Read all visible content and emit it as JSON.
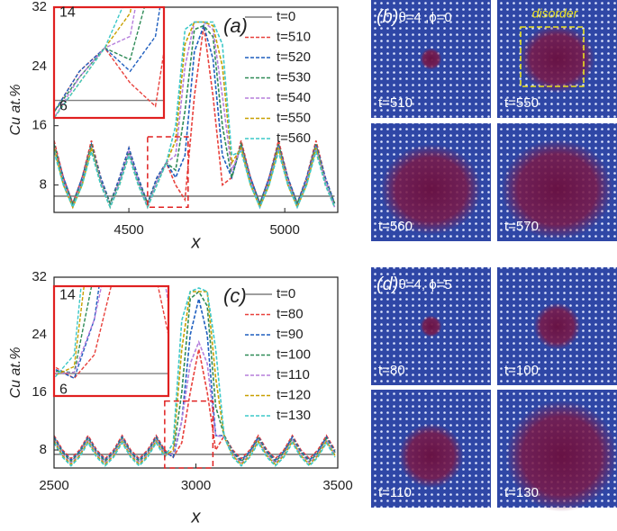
{
  "chart_data": [
    {
      "type": "line",
      "title": "(a)",
      "xlabel": "x",
      "ylabel": "Cu at.%",
      "xlim": [
        4260,
        5170
      ],
      "ylim": [
        4.3,
        32
      ],
      "xticks": [
        4500,
        5000
      ],
      "yticks": [
        8,
        16,
        24,
        32
      ],
      "legend": "upper right",
      "x": [
        4260,
        4290,
        4320,
        4350,
        4380,
        4410,
        4440,
        4470,
        4500,
        4530,
        4560,
        4590,
        4620,
        4650,
        4680,
        4710,
        4740,
        4770,
        4800,
        4830,
        4860,
        4890,
        4920,
        4950,
        4980,
        5010,
        5040,
        5070,
        5100,
        5130,
        5160
      ],
      "series": [
        {
          "name": "t=0",
          "color": "#7f7f7f",
          "values": [
            6.5,
            6.5,
            6.5,
            6.5,
            6.5,
            6.5,
            6.5,
            6.5,
            6.5,
            6.5,
            6.5,
            6.5,
            6.5,
            6.5,
            6.5,
            6.5,
            6.5,
            6.5,
            6.5,
            6.5,
            6.5,
            6.5,
            6.5,
            6.5,
            6.5,
            6.5,
            6.5,
            6.5,
            6.5,
            6.5,
            6.5
          ]
        },
        {
          "name": "t=510",
          "color": "#e8413c",
          "values": [
            14,
            9,
            5.5,
            9,
            14,
            9,
            5.5,
            9,
            13,
            9,
            5.5,
            9,
            11,
            8,
            6,
            20,
            29.5,
            20,
            8,
            9,
            14,
            9,
            5.5,
            9,
            14,
            9,
            5.5,
            9,
            14,
            9,
            5.5
          ]
        },
        {
          "name": "t=520",
          "color": "#1f5fbf",
          "values": [
            13.5,
            9,
            5.5,
            9,
            13.5,
            9,
            5.5,
            9,
            13,
            9,
            5.5,
            9,
            11,
            9,
            12,
            26,
            29.5,
            25,
            12,
            9,
            13.5,
            9,
            5.5,
            9,
            13.5,
            9,
            5.5,
            9,
            13.5,
            9,
            5.5
          ]
        },
        {
          "name": "t=530",
          "color": "#2e8b57",
          "values": [
            13.5,
            8.5,
            5.5,
            8.5,
            13.5,
            8.5,
            5.5,
            8.5,
            12.5,
            8.5,
            5.5,
            8.5,
            11,
            10,
            18,
            29,
            29.5,
            28,
            16,
            9,
            13.5,
            8.5,
            5.5,
            8.5,
            13.5,
            8.5,
            5.5,
            8.5,
            13.5,
            8.5,
            5.5
          ]
        },
        {
          "name": "t=540",
          "color": "#b57edc",
          "values": [
            13,
            8.5,
            5,
            8.5,
            13,
            8.5,
            5,
            8.5,
            12.5,
            8.5,
            5,
            8.5,
            11,
            12,
            24,
            30,
            30,
            29,
            20,
            10,
            13,
            8.5,
            5,
            8.5,
            13,
            8.5,
            5,
            8.5,
            13,
            8.5,
            5
          ]
        },
        {
          "name": "t=550",
          "color": "#c8a000",
          "values": [
            13,
            8,
            5,
            8,
            13,
            8,
            5,
            8,
            12,
            8,
            5,
            8,
            11,
            14,
            27,
            30,
            30,
            29.5,
            24,
            11,
            13,
            8,
            5,
            8,
            13,
            8,
            5,
            8,
            13,
            8,
            5
          ]
        },
        {
          "name": "t=560",
          "color": "#3cc8c8",
          "values": [
            12.5,
            8,
            5,
            8,
            12.5,
            8,
            5,
            8,
            12,
            8,
            5,
            8,
            11,
            16,
            29,
            30,
            30,
            30,
            27,
            12,
            12.5,
            8,
            5,
            8,
            12.5,
            8,
            5,
            8,
            12.5,
            8,
            5
          ]
        }
      ],
      "inset": {
        "xlim": [
          4560,
          4690
        ],
        "ylim": [
          5,
          14.5
        ],
        "yticks": [
          14,
          6
        ]
      }
    },
    {
      "type": "line",
      "title": "(c)",
      "xlabel": "x",
      "ylabel": "Cu at.%",
      "xlim": [
        2500,
        3500
      ],
      "ylim": [
        5.5,
        32
      ],
      "xticks": [
        2500,
        3000,
        3500
      ],
      "yticks": [
        8,
        16,
        24,
        32
      ],
      "legend": "upper right",
      "x": [
        2500,
        2530,
        2560,
        2590,
        2620,
        2650,
        2680,
        2710,
        2740,
        2770,
        2800,
        2830,
        2860,
        2890,
        2920,
        2950,
        2980,
        3010,
        3040,
        3070,
        3100,
        3130,
        3160,
        3190,
        3220,
        3250,
        3280,
        3310,
        3340,
        3370,
        3400,
        3430,
        3460,
        3490
      ],
      "series": [
        {
          "name": "t=0",
          "color": "#7f7f7f",
          "values": [
            7.4,
            7.4,
            7.4,
            7.4,
            7.4,
            7.4,
            7.4,
            7.4,
            7.4,
            7.4,
            7.4,
            7.4,
            7.4,
            7.4,
            7.4,
            7.4,
            7.4,
            7.4,
            7.4,
            7.4,
            7.4,
            7.4,
            7.4,
            7.4,
            7.4,
            7.4,
            7.4,
            7.4,
            7.4,
            7.4,
            7.4,
            7.4,
            7.4,
            7.4
          ]
        },
        {
          "name": "t=80",
          "color": "#e8413c",
          "values": [
            10,
            8,
            6.8,
            8,
            10,
            8,
            6.8,
            8,
            10,
            8,
            6.8,
            8,
            10,
            8,
            7,
            9,
            16,
            22,
            16,
            8,
            10,
            8,
            6.8,
            8,
            10,
            8,
            6.8,
            8,
            10,
            8,
            6.8,
            8,
            10,
            8
          ]
        },
        {
          "name": "t=90",
          "color": "#1f5fbf",
          "values": [
            9.8,
            7.8,
            6.6,
            7.8,
            9.8,
            7.8,
            6.6,
            7.8,
            9.8,
            7.8,
            6.6,
            7.8,
            9.8,
            7.8,
            7,
            12,
            24,
            29,
            24,
            10,
            10,
            7.8,
            6.6,
            7.8,
            9.8,
            7.8,
            6.6,
            7.8,
            9.8,
            7.8,
            6.6,
            7.8,
            9.8,
            7.8
          ]
        },
        {
          "name": "t=100",
          "color": "#2e8b57",
          "values": [
            9.6,
            7.6,
            6.4,
            7.6,
            9.6,
            7.6,
            6.4,
            7.6,
            9.6,
            7.6,
            6.4,
            7.6,
            9.6,
            7.6,
            7.5,
            16,
            29,
            30,
            28,
            14,
            10,
            7.6,
            6.4,
            7.6,
            9.6,
            7.6,
            6.4,
            7.6,
            9.6,
            7.6,
            6.4,
            7.6,
            9.6,
            7.6
          ]
        },
        {
          "name": "t=110",
          "color": "#b57edc",
          "values": [
            9.4,
            7.4,
            6.2,
            7.4,
            9.4,
            7.4,
            6.2,
            7.4,
            9.4,
            7.4,
            6.2,
            7.4,
            9.4,
            7.4,
            7.5,
            12,
            20,
            23,
            20,
            10,
            9.8,
            7.4,
            6.2,
            7.4,
            9.4,
            7.4,
            6.2,
            7.4,
            9.4,
            7.4,
            6.2,
            7.4,
            9.4,
            7.4
          ]
        },
        {
          "name": "t=120",
          "color": "#c8a000",
          "values": [
            9.2,
            7.2,
            6,
            7.2,
            9.2,
            7.2,
            6,
            7.2,
            9.2,
            7.2,
            6,
            7.2,
            9.2,
            7.2,
            8,
            22,
            30,
            30,
            30,
            18,
            9.8,
            7.2,
            6,
            7.2,
            9.2,
            7.2,
            6,
            7.2,
            9.2,
            7.2,
            6,
            7.2,
            9.2,
            7.2
          ]
        },
        {
          "name": "t=130",
          "color": "#3cc8c8",
          "values": [
            9,
            7,
            5.8,
            7,
            9,
            7,
            5.8,
            7,
            9,
            7,
            5.8,
            7,
            9,
            7,
            9,
            26,
            30,
            30.5,
            30,
            22,
            9.8,
            7,
            5.8,
            7,
            9,
            7,
            5.8,
            7,
            9,
            7,
            5.8,
            7,
            9,
            7
          ]
        }
      ],
      "inset": {
        "xlim": [
          2890,
          3060
        ],
        "ylim": [
          5.5,
          14.8
        ],
        "yticks": [
          14,
          6
        ]
      }
    }
  ],
  "panels": [
    {
      "label": "(b)",
      "params": "θ=4 ,ϕ=0",
      "annotation": "disorder",
      "times": [
        "t=510",
        "t=550",
        "t=560",
        "t=570"
      ]
    },
    {
      "label": "(d)",
      "params": "θ=4, ϕ=5",
      "times": [
        "t=80",
        "t=100",
        "t=110",
        "t=130"
      ]
    }
  ]
}
